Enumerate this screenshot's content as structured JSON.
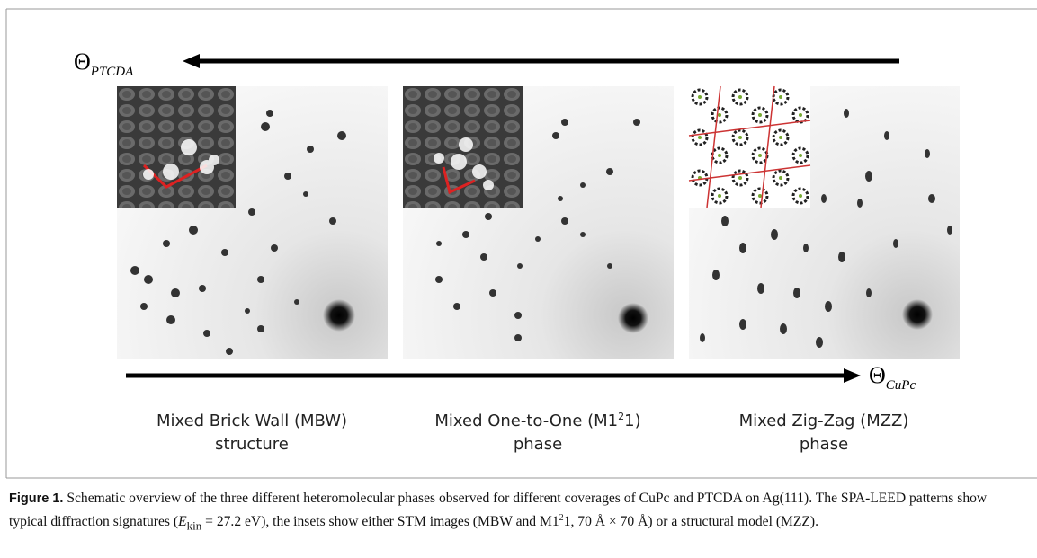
{
  "arrows": {
    "top": {
      "symbol": "Θ",
      "subscript": "PTCDA"
    },
    "bottom": {
      "symbol": "Θ",
      "subscript": "CuPc"
    }
  },
  "panels": [
    {
      "line1": "Mixed Brick Wall (MBW)",
      "line2": "structure"
    },
    {
      "line1_start": "Mixed One-to-One (M1",
      "line1_sup": "2",
      "line1_end": "1)",
      "line2": "phase"
    },
    {
      "line1": "Mixed Zig-Zag (MZZ)",
      "line2": "phase"
    }
  ],
  "caption": {
    "label": "Figure 1.",
    "text1": " Schematic overview of the three different heteromolecular phases observed for different coverages of CuPc and PTCDA on Ag(111). The SPA-LEED patterns show typical diffraction signatures (",
    "energy_symbol": "E",
    "energy_subscript": "kin",
    "text2": " = 27.2 eV), the insets show either STM images (MBW and M1",
    "sup": "2",
    "text3": "1, 70 Å × 70 Å) or a structural model (MZZ)."
  }
}
